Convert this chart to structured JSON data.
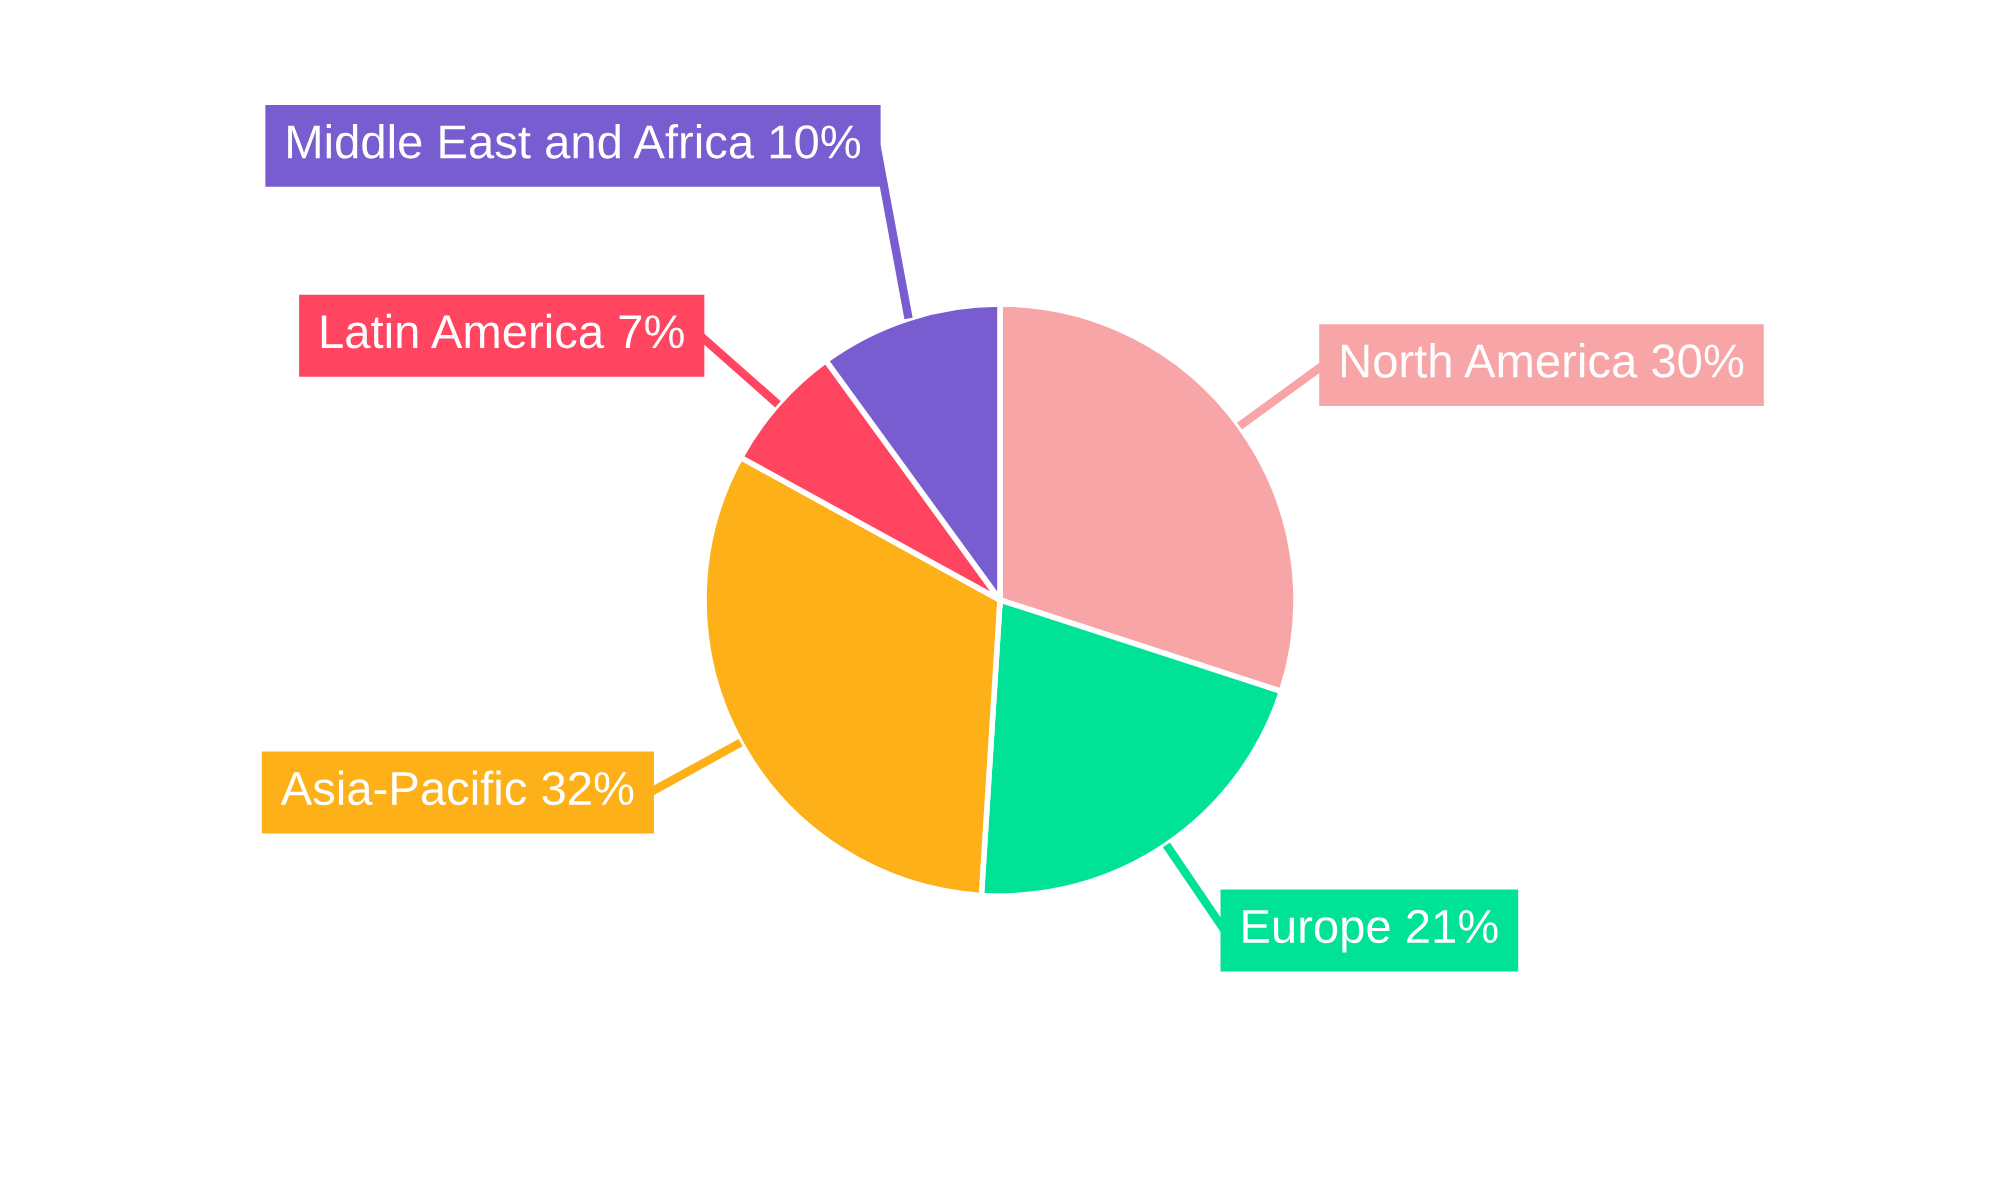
{
  "chart_data": {
    "type": "pie",
    "categories": [
      "North America",
      "Europe",
      "Asia-Pacific",
      "Latin America",
      "Middle East and Africa"
    ],
    "values": [
      30,
      21,
      32,
      7,
      10
    ],
    "colors": [
      "#f8a5a7",
      "#00e396",
      "#feb019",
      "#ff4560",
      "#775dd0"
    ],
    "value_labels": [
      "30%",
      "21%",
      "32%",
      "7%",
      "10%"
    ],
    "legend": false
  }
}
